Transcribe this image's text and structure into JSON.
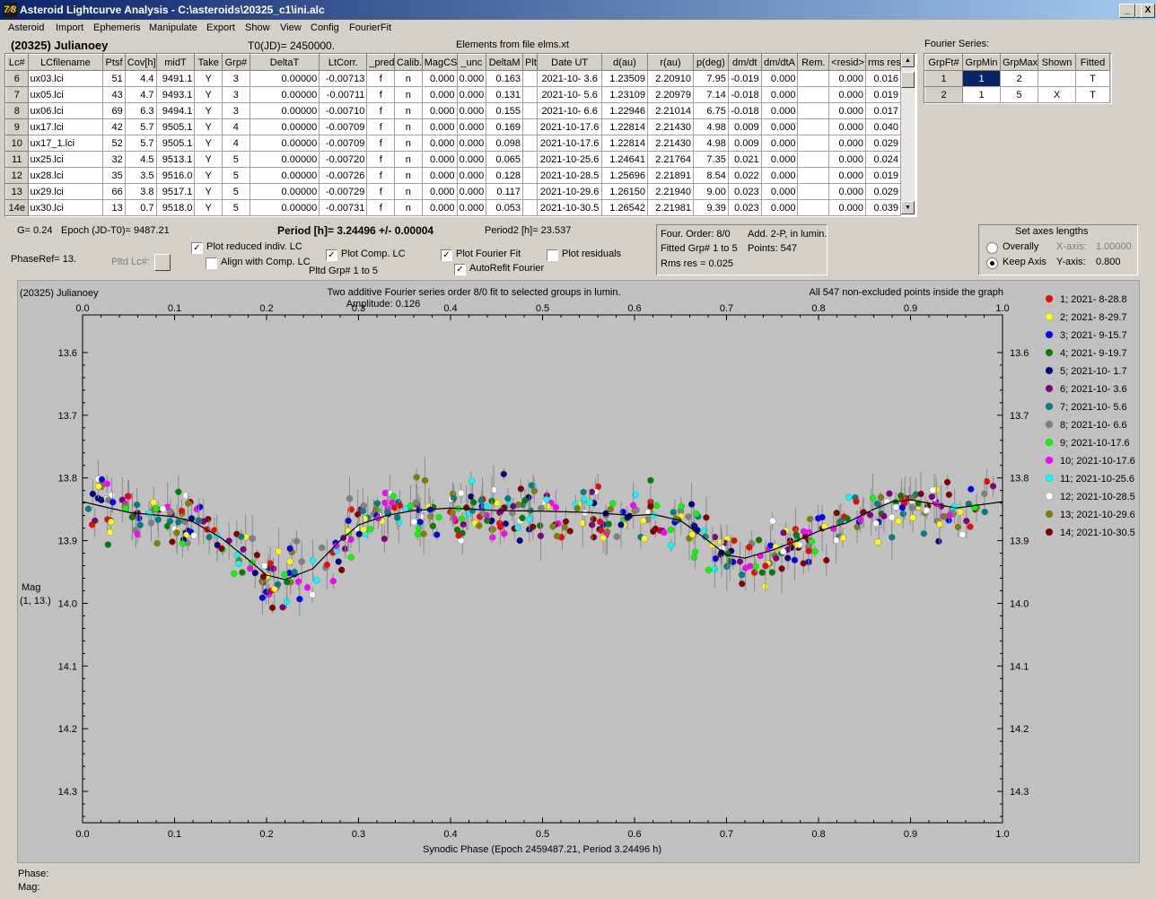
{
  "window": {
    "title": "Asteroid Lightcurve Analysis - C:\\asteroids\\20325_c1\\ini.alc",
    "icon_glyph": "7⁄8",
    "min": "_",
    "max": "□",
    "close": "X"
  },
  "menu": [
    "Asteroid",
    "Import",
    "Ephemeris",
    "Manipulate",
    "Export",
    "Show",
    "View",
    "Config",
    "FourierFit"
  ],
  "header": {
    "asteroid_name": "(20325) Julianoey",
    "t0": "T0(JD)= 2450000.",
    "elements": "Elements from file elms.xt"
  },
  "lc_table": {
    "columns": [
      "Lc#",
      "LCfilename",
      "Ptsf",
      "Cov[h]",
      "midT",
      "Take",
      "Grp#",
      "DeltaT",
      "LtCorr.",
      "_pred.",
      "Calib.",
      "MagCS",
      "_unc",
      "DeltaM",
      "Plt",
      "Date UT",
      "d(au)",
      "r(au)",
      "p(deg)",
      "dm/dt",
      "dm/dtA",
      "Rem.",
      "<resid>",
      "rms res"
    ],
    "rows": [
      [
        "6",
        "ux03.lci",
        "51",
        "4.4",
        "9491.1",
        "Y",
        "3",
        "0.00000",
        "-0.00713",
        "f",
        "n",
        "0.000",
        "0.000",
        "0.163",
        "",
        "2021-10- 3.6",
        "1.23509",
        "2.20910",
        "7.95",
        "-0.019",
        "0.000",
        "",
        "0.000",
        "0.016"
      ],
      [
        "7",
        "ux05.lci",
        "43",
        "4.7",
        "9493.1",
        "Y",
        "3",
        "0.00000",
        "-0.00711",
        "f",
        "n",
        "0.000",
        "0.000",
        "0.131",
        "",
        "2021-10- 5.6",
        "1.23109",
        "2.20979",
        "7.14",
        "-0.018",
        "0.000",
        "",
        "0.000",
        "0.019"
      ],
      [
        "8",
        "ux06.lci",
        "69",
        "6.3",
        "9494.1",
        "Y",
        "3",
        "0.00000",
        "-0.00710",
        "f",
        "n",
        "0.000",
        "0.000",
        "0.155",
        "",
        "2021-10- 6.6",
        "1.22946",
        "2.21014",
        "6.75",
        "-0.018",
        "0.000",
        "",
        "0.000",
        "0.017"
      ],
      [
        "9",
        "ux17.lci",
        "42",
        "5.7",
        "9505.1",
        "Y",
        "4",
        "0.00000",
        "-0.00709",
        "f",
        "n",
        "0.000",
        "0.000",
        "0.169",
        "",
        "2021-10-17.6",
        "1.22814",
        "2.21430",
        "4.98",
        "0.009",
        "0.000",
        "",
        "0.000",
        "0.040"
      ],
      [
        "10",
        "ux17_1.lci",
        "52",
        "5.7",
        "9505.1",
        "Y",
        "4",
        "0.00000",
        "-0.00709",
        "f",
        "n",
        "0.000",
        "0.000",
        "0.098",
        "",
        "2021-10-17.6",
        "1.22814",
        "2.21430",
        "4.98",
        "0.009",
        "0.000",
        "",
        "0.000",
        "0.029"
      ],
      [
        "11",
        "ux25.lci",
        "32",
        "4.5",
        "9513.1",
        "Y",
        "5",
        "0.00000",
        "-0.00720",
        "f",
        "n",
        "0.000",
        "0.000",
        "0.065",
        "",
        "2021-10-25.6",
        "1.24641",
        "2.21764",
        "7.35",
        "0.021",
        "0.000",
        "",
        "0.000",
        "0.024"
      ],
      [
        "12",
        "ux28.lci",
        "35",
        "3.5",
        "9516.0",
        "Y",
        "5",
        "0.00000",
        "-0.00726",
        "f",
        "n",
        "0.000",
        "0.000",
        "0.128",
        "",
        "2021-10-28.5",
        "1.25696",
        "2.21891",
        "8.54",
        "0.022",
        "0.000",
        "",
        "0.000",
        "0.019"
      ],
      [
        "13",
        "ux29.lci",
        "66",
        "3.8",
        "9517.1",
        "Y",
        "5",
        "0.00000",
        "-0.00729",
        "f",
        "n",
        "0.000",
        "0.000",
        "0.117",
        "",
        "2021-10-29.6",
        "1.26150",
        "2.21940",
        "9.00",
        "0.023",
        "0.000",
        "",
        "0.000",
        "0.029"
      ],
      [
        "14e",
        "ux30.lci",
        "13",
        "0.7",
        "9518.0",
        "Y",
        "5",
        "0.00000",
        "-0.00731",
        "f",
        "n",
        "0.000",
        "0.000",
        "0.053",
        "",
        "2021-10-30.5",
        "1.26542",
        "2.21981",
        "9.39",
        "0.023",
        "0.000",
        "",
        "0.000",
        "0.039"
      ]
    ],
    "scroll_up": "▲",
    "scroll_down": "▼"
  },
  "fourier": {
    "title": "Fourier Series:",
    "columns": [
      "GrpFt#",
      "GrpMin",
      "GrpMax",
      "Shown",
      "Fitted"
    ],
    "rows": [
      [
        "1",
        "1",
        "2",
        "",
        "T"
      ],
      [
        "2",
        "1",
        "5",
        "X",
        "T"
      ]
    ]
  },
  "params": {
    "g": "G= 0.24",
    "epoch": "Epoch (JD-T0)= 9487.21",
    "period": "Period [h]= 3.24496 +/- 0.00004",
    "period2": "Period2 [h]= 23.537",
    "phaseref": "PhaseRef= 13.",
    "pltd_lc": "Pltd Lc#:",
    "pltd_grp": "Pltd Grp#  1   to   5",
    "cb_reduced": "Plot reduced indiv. LC",
    "cb_align": "Align with Comp. LC",
    "cb_comp": "Plot Comp. LC",
    "cb_fourier": "Plot Fourier Fit",
    "cb_resid": "Plot residuals",
    "cb_autorefit": "AutoRefit Fourier",
    "check_mark": "✓"
  },
  "fourier_info": {
    "order": "Four. Order:  8/0",
    "add": "Add. 2-P, in lumin.",
    "fitted": "Fitted Grp# 1 to 5",
    "points": "Points: 547",
    "rms": "Rms res      = 0.025"
  },
  "axes_box": {
    "title": "Set axes lengths",
    "overally": "Overally",
    "keep": "Keep Axis",
    "xaxis_label": "X-axis:",
    "xaxis_val": "1.00000",
    "yaxis_label": "Y-axis:",
    "yaxis_val": "0.800"
  },
  "chart_data": {
    "type": "scatter",
    "title_left": "(20325) Julianoey",
    "title_center": "Two additive Fourier series order 8/0 fit to selected groups in lumin.",
    "subtitle": "Amplitude: 0.126",
    "title_right": "All 547 non-excluded points inside the graph",
    "xlabel": "Synodic Phase (Epoch 2459487.21, Period 3.24496 h)",
    "ylabel": "Mag",
    "ylabel2": "(1, 13.)",
    "xlim": [
      0,
      1.0
    ],
    "ylim": [
      13.54,
      14.35
    ],
    "y_inverted": true,
    "xticks": [
      "0.0",
      "0.1",
      "0.2",
      "0.3",
      "0.4",
      "0.5",
      "0.6",
      "0.7",
      "0.8",
      "0.9",
      "1.0"
    ],
    "yticks": [
      "13.6",
      "13.7",
      "13.8",
      "13.9",
      "14.0",
      "14.1",
      "14.2",
      "14.3"
    ],
    "legend_position": "right",
    "series": [
      {
        "name": "1; 2021- 8-28.8",
        "color": "#ff0000"
      },
      {
        "name": "2; 2021- 8-29.7",
        "color": "#ffff00"
      },
      {
        "name": "3; 2021- 9-15.7",
        "color": "#0000ff"
      },
      {
        "name": "4; 2021- 9-19.7",
        "color": "#008000"
      },
      {
        "name": "5; 2021-10- 1.7",
        "color": "#000080"
      },
      {
        "name": "6; 2021-10- 3.6",
        "color": "#800080"
      },
      {
        "name": "7; 2021-10- 5.6",
        "color": "#008080"
      },
      {
        "name": "8; 2021-10- 6.6",
        "color": "#808080"
      },
      {
        "name": "9; 2021-10-17.6",
        "color": "#00ff00"
      },
      {
        "name": "10; 2021-10-17.6",
        "color": "#ff00ff"
      },
      {
        "name": "11; 2021-10-25.6",
        "color": "#00ffff"
      },
      {
        "name": "12; 2021-10-28.5",
        "color": "#ffffff"
      },
      {
        "name": "13; 2021-10-29.6",
        "color": "#808000"
      },
      {
        "name": "14; 2021-10-30.5",
        "color": "#800000"
      }
    ],
    "fit_curve": {
      "x": [
        0.0,
        0.05,
        0.1,
        0.12,
        0.15,
        0.18,
        0.2,
        0.22,
        0.25,
        0.28,
        0.3,
        0.33,
        0.36,
        0.4,
        0.45,
        0.5,
        0.55,
        0.6,
        0.62,
        0.65,
        0.68,
        0.7,
        0.72,
        0.75,
        0.78,
        0.8,
        0.83,
        0.86,
        0.88,
        0.9,
        0.95,
        1.0
      ],
      "y": [
        13.838,
        13.855,
        13.862,
        13.87,
        13.895,
        13.93,
        13.955,
        13.962,
        13.945,
        13.9,
        13.875,
        13.86,
        13.852,
        13.848,
        13.852,
        13.853,
        13.855,
        13.86,
        13.858,
        13.868,
        13.9,
        13.923,
        13.928,
        13.915,
        13.898,
        13.885,
        13.872,
        13.85,
        13.838,
        13.835,
        13.848,
        13.838
      ]
    }
  },
  "status": {
    "phase": "Phase:",
    "mag": "Mag:"
  }
}
